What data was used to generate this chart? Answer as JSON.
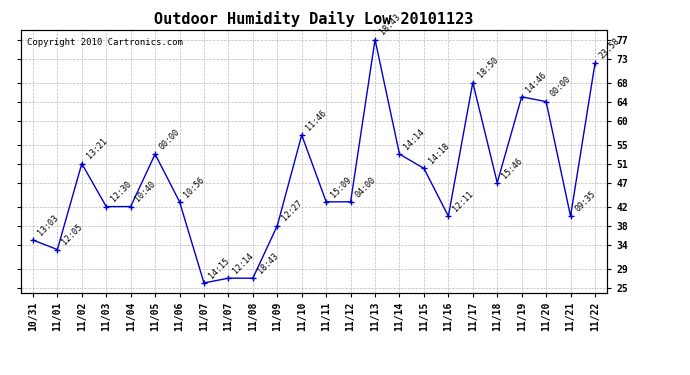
{
  "title": "Outdoor Humidity Daily Low 20101123",
  "copyright": "Copyright 2010 Cartronics.com",
  "x_labels": [
    "10/31",
    "11/01",
    "11/02",
    "11/03",
    "11/04",
    "11/05",
    "11/06",
    "11/07",
    "11/07",
    "11/08",
    "11/09",
    "11/10",
    "11/11",
    "11/12",
    "11/13",
    "11/14",
    "11/15",
    "11/16",
    "11/17",
    "11/18",
    "11/19",
    "11/20",
    "11/21",
    "11/22"
  ],
  "x_positions": [
    0,
    1,
    2,
    3,
    4,
    5,
    6,
    7,
    8,
    9,
    10,
    11,
    12,
    13,
    14,
    15,
    16,
    17,
    18,
    19,
    20,
    21,
    22,
    23
  ],
  "y_values": [
    35,
    33,
    51,
    42,
    42,
    53,
    43,
    26,
    27,
    27,
    38,
    57,
    43,
    43,
    77,
    53,
    50,
    40,
    68,
    47,
    65,
    64,
    40,
    72
  ],
  "point_labels": [
    "13:03",
    "12:05",
    "13:21",
    "12:30",
    "10:40",
    "00:00",
    "10:56",
    "14:15",
    "12:14",
    "18:43",
    "12:27",
    "11:46",
    "15:09",
    "04:00",
    "18:43",
    "14:14",
    "14:18",
    "12:11",
    "18:50",
    "15:46",
    "14:46",
    "00:00",
    "09:35",
    "23:58"
  ],
  "yticks": [
    25,
    29,
    34,
    38,
    42,
    47,
    51,
    55,
    60,
    64,
    68,
    73,
    77
  ],
  "ylim": [
    24,
    79
  ],
  "xlim": [
    -0.5,
    23.5
  ],
  "line_color": "#0000cc",
  "marker_color": "#0000cc",
  "bg_color": "#ffffff",
  "grid_color": "#bbbbbb",
  "title_fontsize": 11,
  "label_fontsize": 6,
  "tick_fontsize": 7,
  "copyright_fontsize": 6.5
}
